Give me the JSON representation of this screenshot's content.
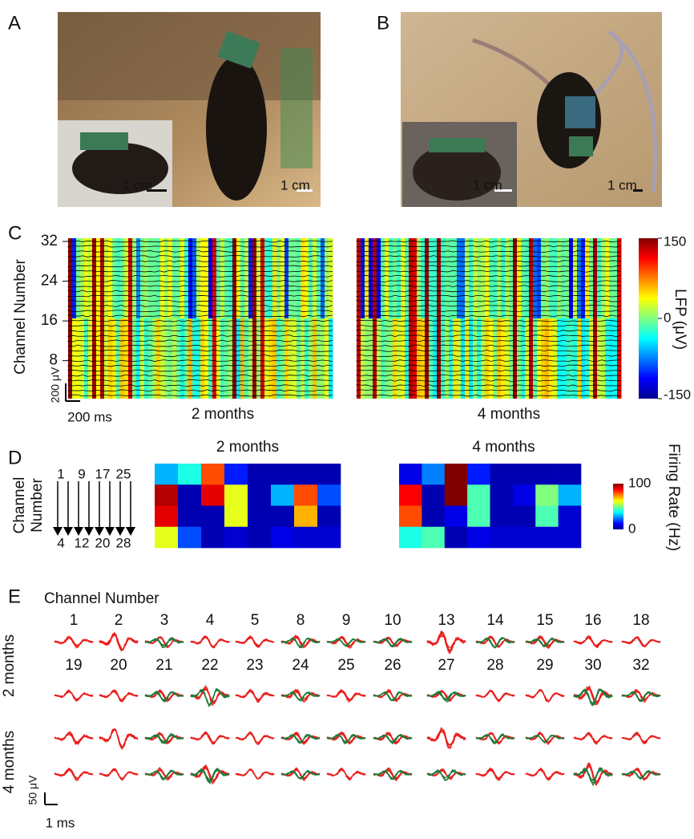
{
  "panel_a": {
    "label": "A",
    "inset_scale": "1 cm",
    "main_scale": "1 cm"
  },
  "panel_b": {
    "label": "B",
    "inset_scale": "1 cm",
    "main_scale": "1 cm"
  },
  "panel_c": {
    "label": "C",
    "y_label": "Channel Number",
    "yticks": [
      8,
      16,
      24,
      32
    ],
    "scale_v": "200 μV",
    "scale_t": "200 ms",
    "titles": [
      "2 months",
      "4 months"
    ],
    "colorbar_label": "LFP (μV)",
    "colorbar_ticks": [
      150,
      0,
      -150
    ]
  },
  "panel_d": {
    "label": "D",
    "y_label": [
      "Channel",
      "Number"
    ],
    "top_channels": [
      "1",
      "9",
      "17",
      "25"
    ],
    "bottom_channels": [
      "4",
      "12",
      "20",
      "28"
    ],
    "colorbar_label": "Firing Rate (Hz)",
    "colorbar_ticks": [
      100,
      0
    ],
    "heatmaps": [
      {
        "title": "2 months",
        "values": [
          [
            30,
            40,
            80,
            15,
            5,
            5,
            5,
            5
          ],
          [
            95,
            5,
            90,
            60,
            5,
            30,
            80,
            20
          ],
          [
            90,
            5,
            5,
            60,
            5,
            5,
            70,
            5
          ],
          [
            60,
            20,
            5,
            8,
            5,
            10,
            8,
            8
          ]
        ]
      },
      {
        "title": "4 months",
        "values": [
          [
            10,
            25,
            100,
            15,
            5,
            5,
            5,
            5
          ],
          [
            88,
            5,
            100,
            45,
            5,
            10,
            50,
            30
          ],
          [
            80,
            5,
            10,
            45,
            5,
            5,
            45,
            8
          ],
          [
            40,
            45,
            5,
            10,
            8,
            8,
            8,
            8
          ]
        ]
      }
    ]
  },
  "panel_e": {
    "label": "E",
    "header": "Channel Number",
    "channels": [
      [
        "1",
        "2",
        "3",
        "4",
        "5",
        "8",
        "9",
        "10",
        "13",
        "14",
        "15",
        "16",
        "18"
      ],
      [
        "19",
        "20",
        "21",
        "22",
        "23",
        "24",
        "25",
        "26",
        "27",
        "28",
        "29",
        "30",
        "32"
      ]
    ],
    "row_labels": [
      "2 months",
      "4 months"
    ],
    "scale_v": "50 μV",
    "scale_t": "1 ms"
  }
}
